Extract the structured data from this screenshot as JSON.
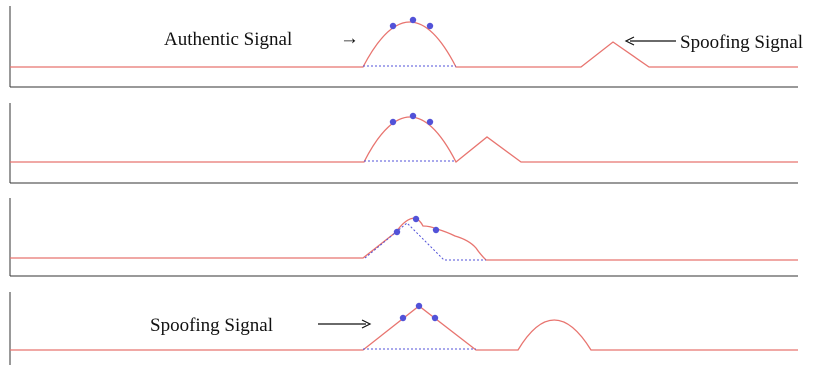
{
  "colors": {
    "signal": "#e8746f",
    "correlator": "#5252d8",
    "axis": "#333333",
    "text": "#111111"
  },
  "panels": [
    {
      "authentic_label": "Authentic Signal",
      "authentic_arrow": "→",
      "spoofing_label": "Spoofing Signal"
    },
    {},
    {},
    {
      "spoofing_label": "Spoofing Signal"
    }
  ]
}
